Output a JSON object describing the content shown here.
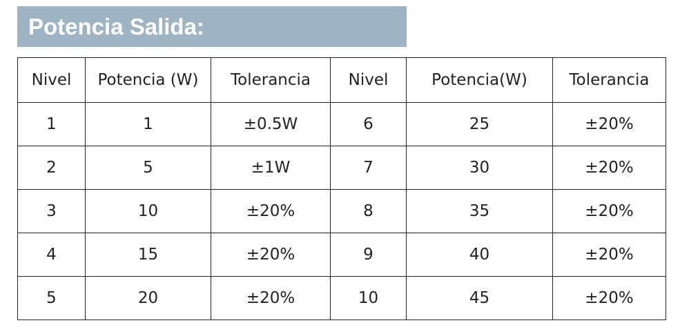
{
  "header": {
    "title": "Potencia Salida:"
  },
  "table": {
    "columns": [
      "Nivel",
      "Potencia (W)",
      "Tolerancia",
      "Nivel",
      "Potencia(W)",
      "Tolerancia"
    ],
    "rows": [
      [
        1,
        1,
        "±0.5W",
        6,
        25,
        "±20%"
      ],
      [
        2,
        5,
        "±1W",
        7,
        30,
        "±20%"
      ],
      [
        3,
        10,
        "±20%",
        8,
        35,
        "±20%"
      ],
      [
        4,
        15,
        "±20%",
        9,
        40,
        "±20%"
      ],
      [
        5,
        20,
        "±20%",
        10,
        45,
        "±20%"
      ]
    ]
  }
}
